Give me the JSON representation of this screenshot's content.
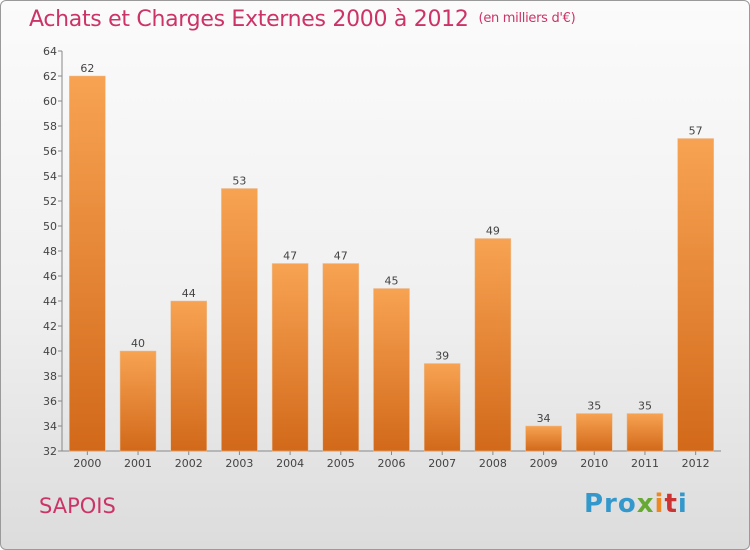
{
  "title": "Achats et Charges Externes 2000 à 2012",
  "subtitle": "(en milliers d'€)",
  "place": "SAPOIS",
  "logo": {
    "p1": "Pro",
    "p2": "x",
    "p3": "i",
    "p4": "t",
    "p5": "i"
  },
  "colors": {
    "bar_top": "#f7a352",
    "bar_bottom": "#d2691a",
    "title": "#cc3366"
  },
  "chart_data": {
    "type": "bar",
    "categories": [
      "2000",
      "2001",
      "2002",
      "2003",
      "2004",
      "2005",
      "2006",
      "2007",
      "2008",
      "2009",
      "2010",
      "2011",
      "2012"
    ],
    "values": [
      62,
      40,
      44,
      53,
      47,
      47,
      45,
      39,
      49,
      34,
      35,
      35,
      57
    ],
    "ylim": [
      32,
      64
    ],
    "yticks": [
      32,
      34,
      36,
      38,
      40,
      42,
      44,
      46,
      48,
      50,
      52,
      54,
      56,
      58,
      60,
      62,
      64
    ],
    "grid": false
  }
}
